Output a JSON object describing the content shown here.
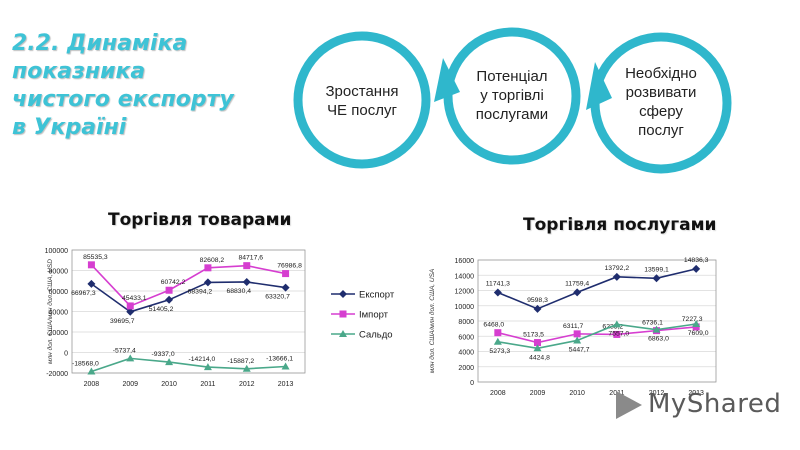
{
  "slide": {
    "title": "2.2. Динаміка\nпоказника\nчистого експорту\nв Україні"
  },
  "process": [
    {
      "label": "Зростання\nЧЕ послуг",
      "color": "#3ec3d6"
    },
    {
      "label": "Потенціал\nу торгівлі\nпослугами",
      "color": "#3ec3d6"
    },
    {
      "label": "Необхідно\nрозвивати\nсферу\nпослуг",
      "color": "#3ec3d6"
    }
  ],
  "sections": {
    "goods_title": "Торгівля товарами",
    "services_title": "Торгівля послугами"
  },
  "watermark": {
    "text": "MyShared",
    "icon": "play-triangle-icon"
  },
  "chart_data": [
    {
      "type": "line",
      "title": "",
      "ylabel": "млн дол. США/млн дол. США, USD",
      "xlabel": "",
      "categories": [
        "2008",
        "2009",
        "2010",
        "2011",
        "2012",
        "2013"
      ],
      "ylim": [
        -20000,
        100000
      ],
      "yticks": [
        -20000,
        0,
        20000,
        40000,
        60000,
        80000,
        100000
      ],
      "yticklabels": [
        "-20000",
        "0",
        "20000",
        "40000",
        "60000",
        "80000",
        "100000"
      ],
      "grid": true,
      "legend": "right",
      "series": [
        {
          "name": "Експорт",
          "color": "#1f2d6e",
          "marker": "diamond",
          "values": [
            66967.3,
            39695.7,
            51405.2,
            68394.2,
            68830.4,
            63320.7
          ],
          "labels": [
            "66967,3",
            "39695,7",
            "51405,2",
            "68394,2",
            "68830,4",
            "63320,7"
          ]
        },
        {
          "name": "Імпорт",
          "color": "#d63ed0",
          "marker": "square",
          "values": [
            85535.3,
            45433.1,
            60742.2,
            82608.2,
            84717.6,
            76986.8
          ],
          "labels": [
            "85535,3",
            "45433,1",
            "60742,2",
            "82608,2",
            "84717,6",
            "76986,8"
          ]
        },
        {
          "name": "Сальдо",
          "color": "#4aa88a",
          "marker": "triangle",
          "values": [
            -18568.0,
            -5737.4,
            -9337.0,
            -14214.0,
            -15887.2,
            -13666.1
          ],
          "labels": [
            "-18568,0",
            "-5737,4",
            "-9337,0",
            "-14214,0",
            "-15887,2",
            "-13666,1"
          ]
        }
      ]
    },
    {
      "type": "line",
      "title": "",
      "ylabel": "млн дол. США/млн дол. США, USA",
      "xlabel": "",
      "categories": [
        "2008",
        "2009",
        "2010",
        "2011",
        "2012",
        "2013"
      ],
      "ylim": [
        0,
        16000
      ],
      "yticks": [
        0,
        2000,
        4000,
        6000,
        8000,
        10000,
        12000,
        14000,
        16000
      ],
      "yticklabels": [
        "0",
        "2000",
        "4000",
        "6000",
        "8000",
        "10000",
        "12000",
        "14000",
        "16000"
      ],
      "grid": true,
      "legend": "none",
      "series": [
        {
          "name": "",
          "color": "#1f2d6e",
          "marker": "diamond",
          "values": [
            11741.3,
            9598.3,
            11759.4,
            13792.2,
            13599.1,
            14836.3
          ],
          "labels": [
            "11741,3",
            "9598,3",
            "11759,4",
            "13792,2",
            "13599,1",
            "14836,3"
          ]
        },
        {
          "name": "",
          "color": "#d63ed0",
          "marker": "square",
          "values": [
            6468.0,
            5173.5,
            6311.7,
            6235.2,
            6736.1,
            7227.3
          ],
          "labels": [
            "6468,0",
            "5173,5",
            "6311,7",
            "6235,2",
            "6736,1",
            "7227,3"
          ]
        },
        {
          "name": "",
          "color": "#4aa88a",
          "marker": "triangle",
          "values": [
            5273.3,
            4424.8,
            5447.7,
            7557.0,
            6863.0,
            7609.0
          ],
          "labels": [
            "5273,3",
            "4424,8",
            "5447,7",
            "7557,0",
            "6863,0",
            "7609,0"
          ]
        }
      ]
    }
  ]
}
